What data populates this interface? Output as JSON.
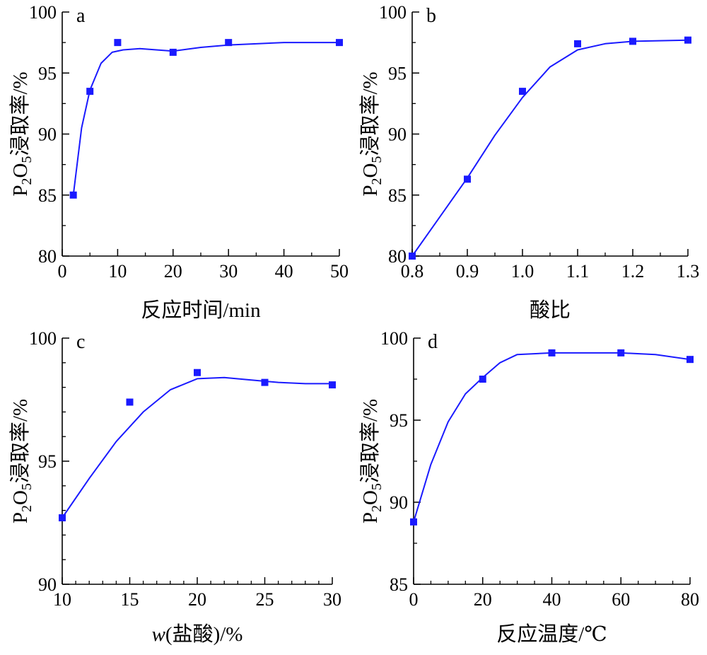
{
  "chart_data": [
    {
      "type": "line",
      "panel_label": "a",
      "xlabel": "反应时间/min",
      "ylabel": {
        "pre": "P",
        "sub1": "2",
        "mid": "O",
        "sub2": "5",
        "post": "浸取率/%"
      },
      "xlim": [
        0,
        50
      ],
      "ylim": [
        80,
        100
      ],
      "xticks": [
        0,
        10,
        20,
        30,
        40,
        50
      ],
      "yticks": [
        80,
        85,
        90,
        95,
        100
      ],
      "x_tick_labels": [
        "0",
        "10",
        "20",
        "30",
        "40",
        "50"
      ],
      "y_tick_labels": [
        "80",
        "85",
        "90",
        "95",
        "100"
      ],
      "x_minor_step": 5,
      "y_minor_step": 2.5,
      "series": [
        {
          "marker": "square",
          "color": "#1a1aff",
          "points": [
            [
              2,
              85.0
            ],
            [
              5,
              93.5
            ],
            [
              10,
              97.5
            ],
            [
              20,
              96.7
            ],
            [
              30,
              97.5
            ],
            [
              50,
              97.5
            ]
          ],
          "curve": [
            [
              2,
              85.0
            ],
            [
              3.5,
              90.5
            ],
            [
              5,
              93.6
            ],
            [
              7,
              95.8
            ],
            [
              9,
              96.7
            ],
            [
              11,
              96.9
            ],
            [
              14,
              97.0
            ],
            [
              17,
              96.9
            ],
            [
              20,
              96.8
            ],
            [
              25,
              97.1
            ],
            [
              30,
              97.3
            ],
            [
              40,
              97.5
            ],
            [
              50,
              97.5
            ]
          ]
        }
      ]
    },
    {
      "type": "line",
      "panel_label": "b",
      "xlabel": "酸比",
      "ylabel": {
        "pre": "P",
        "sub1": "2",
        "mid": "O",
        "sub2": "5",
        "post": "浸取率/%"
      },
      "xlim": [
        0.8,
        1.3
      ],
      "ylim": [
        80,
        100
      ],
      "xticks": [
        0.8,
        0.9,
        1.0,
        1.1,
        1.2,
        1.3
      ],
      "yticks": [
        80,
        85,
        90,
        95,
        100
      ],
      "x_tick_labels": [
        "0.8",
        "0.9",
        "1.0",
        "1.1",
        "1.2",
        "1.3"
      ],
      "y_tick_labels": [
        "80",
        "85",
        "90",
        "95",
        "100"
      ],
      "x_minor_step": 0.05,
      "y_minor_step": 2.5,
      "series": [
        {
          "marker": "square",
          "color": "#1a1aff",
          "points": [
            [
              0.8,
              80.0
            ],
            [
              0.9,
              86.3
            ],
            [
              1.0,
              93.5
            ],
            [
              1.1,
              97.4
            ],
            [
              1.2,
              97.6
            ],
            [
              1.3,
              97.7
            ]
          ],
          "curve": [
            [
              0.8,
              80.0
            ],
            [
              0.85,
              83.2
            ],
            [
              0.9,
              86.4
            ],
            [
              0.95,
              89.9
            ],
            [
              1.0,
              93.0
            ],
            [
              1.05,
              95.5
            ],
            [
              1.1,
              96.9
            ],
            [
              1.15,
              97.4
            ],
            [
              1.2,
              97.6
            ],
            [
              1.3,
              97.7
            ]
          ]
        }
      ]
    },
    {
      "type": "line",
      "panel_label": "c",
      "xlabel_var": "w",
      "xlabel_rest": "(盐酸)/%",
      "ylabel": {
        "pre": "P",
        "sub1": "2",
        "mid": "O",
        "sub2": "5",
        "post": "浸取率/%"
      },
      "xlim": [
        10,
        30
      ],
      "ylim": [
        90,
        100
      ],
      "xticks": [
        10,
        15,
        20,
        25,
        30
      ],
      "yticks": [
        90,
        95,
        100
      ],
      "x_tick_labels": [
        "10",
        "15",
        "20",
        "25",
        "30"
      ],
      "y_tick_labels": [
        "90",
        "95",
        "100"
      ],
      "x_minor_step": 1,
      "y_minor_step": 1,
      "series": [
        {
          "marker": "square",
          "color": "#1a1aff",
          "points": [
            [
              10,
              92.7
            ],
            [
              15,
              97.4
            ],
            [
              20,
              98.6
            ],
            [
              25,
              98.2
            ],
            [
              30,
              98.1
            ]
          ],
          "curve": [
            [
              10,
              92.7
            ],
            [
              12,
              94.3
            ],
            [
              14,
              95.8
            ],
            [
              16,
              97.0
            ],
            [
              18,
              97.9
            ],
            [
              20,
              98.35
            ],
            [
              22,
              98.4
            ],
            [
              24,
              98.3
            ],
            [
              26,
              98.2
            ],
            [
              28,
              98.15
            ],
            [
              30,
              98.15
            ]
          ]
        }
      ]
    },
    {
      "type": "line",
      "panel_label": "d",
      "xlabel": "反应温度/℃",
      "ylabel": {
        "pre": "P",
        "sub1": "2",
        "mid": "O",
        "sub2": "5",
        "post": "浸取率/%"
      },
      "xlim": [
        0,
        80
      ],
      "ylim": [
        85,
        100
      ],
      "xticks": [
        0,
        20,
        40,
        60,
        80
      ],
      "yticks": [
        85,
        90,
        95,
        100
      ],
      "x_tick_labels": [
        "0",
        "20",
        "40",
        "60",
        "80"
      ],
      "y_tick_labels": [
        "85",
        "90",
        "95",
        "100"
      ],
      "x_minor_step": 5,
      "y_minor_step": 2.5,
      "series": [
        {
          "marker": "square",
          "color": "#1a1aff",
          "points": [
            [
              0,
              88.8
            ],
            [
              20,
              97.5
            ],
            [
              40,
              99.1
            ],
            [
              60,
              99.1
            ],
            [
              80,
              98.7
            ]
          ],
          "curve": [
            [
              0,
              88.8
            ],
            [
              5,
              92.3
            ],
            [
              10,
              94.9
            ],
            [
              15,
              96.6
            ],
            [
              20,
              97.6
            ],
            [
              25,
              98.5
            ],
            [
              30,
              99.0
            ],
            [
              40,
              99.1
            ],
            [
              50,
              99.1
            ],
            [
              60,
              99.1
            ],
            [
              70,
              99.0
            ],
            [
              80,
              98.7
            ]
          ]
        }
      ]
    }
  ]
}
